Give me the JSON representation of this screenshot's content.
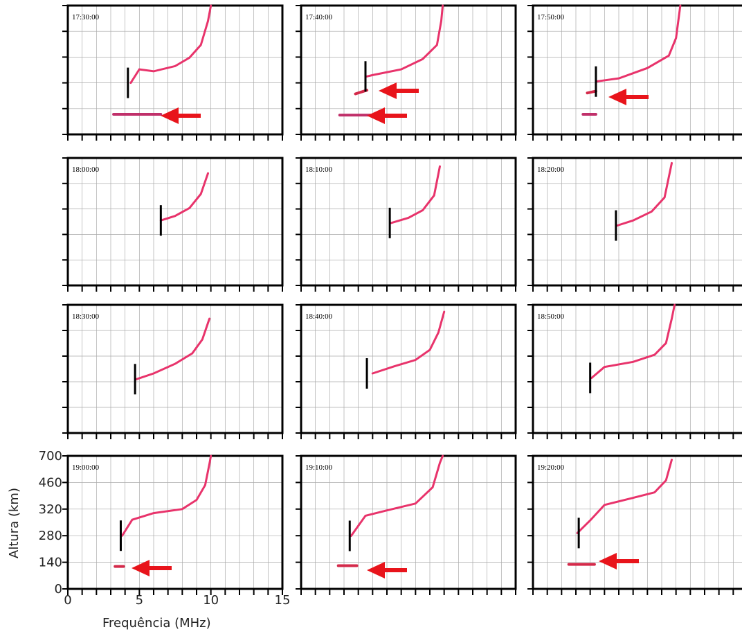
{
  "axes": {
    "xlabel": "Frequência (MHz)",
    "ylabel": "Altura (km)",
    "xlim": [
      0,
      15
    ],
    "xticks": [
      0,
      5,
      10,
      15
    ],
    "xticks_minor": [
      0,
      1,
      2,
      3,
      4,
      5,
      6,
      7,
      8,
      9,
      10,
      11,
      12,
      13,
      14,
      15
    ],
    "ylim": [
      0,
      700
    ],
    "yticks": [
      0,
      140,
      280,
      320,
      460,
      700
    ],
    "y_scale": "piecewise",
    "grid": true
  },
  "chart_data": [
    {
      "type": "line",
      "title": "17:30:00",
      "marker_x": 4.2,
      "series": [
        {
          "color": "#e8336b",
          "x": [
            4.4,
            5,
            6,
            7.5,
            8.5,
            9.3,
            9.8,
            10
          ],
          "values": [
            280,
            301,
            298,
            306,
            319,
            386,
            556,
            700
          ]
        },
        {
          "color": "#c0306a",
          "x": [
            3.2,
            6.5
          ],
          "values": [
            109,
            109
          ]
        }
      ]
    },
    {
      "type": "line",
      "title": "17:40:00",
      "marker_x": 4.5,
      "series": [
        {
          "color": "#e8336b",
          "x": [
            4.6,
            5,
            7,
            8.5,
            9.5,
            9.8,
            9.9
          ],
          "values": [
            290,
            292,
            301,
            317,
            386,
            556,
            700
          ]
        },
        {
          "color": "#d42a4a",
          "x": [
            3.8,
            4.6
          ],
          "values": [
            220,
            240
          ]
        },
        {
          "color": "#c0306a",
          "x": [
            2.7,
            5.2
          ],
          "values": [
            105,
            105
          ]
        }
      ]
    },
    {
      "type": "line",
      "title": "17:50:00",
      "marker_x": 4.4,
      "series": [
        {
          "color": "#e8336b",
          "x": [
            4.4,
            6,
            8,
            9.5,
            10,
            10.3
          ],
          "values": [
            282,
            287,
            303,
            328,
            424,
            700
          ]
        },
        {
          "color": "#d42a4a",
          "x": [
            3.8,
            4.4
          ],
          "values": [
            225,
            235
          ]
        },
        {
          "color": "#c0306a",
          "x": [
            3.5,
            4.4
          ],
          "values": [
            109,
            109
          ]
        }
      ]
    },
    {
      "type": "line",
      "title": "18:00:00",
      "marker_x": 6.5,
      "series": [
        {
          "color": "#e8336b",
          "x": [
            6.5,
            7.5,
            8.5,
            9.3,
            9.8
          ],
          "values": [
            302,
            309,
            325,
            402,
            556
          ]
        }
      ]
    },
    {
      "type": "line",
      "title": "18:10:00",
      "marker_x": 6.2,
      "series": [
        {
          "color": "#e8336b",
          "x": [
            6.3,
            7.5,
            8.5,
            9.3,
            9.7
          ],
          "values": [
            298,
            306,
            318,
            394,
            621
          ]
        }
      ]
    },
    {
      "type": "line",
      "title": "18:20:00",
      "marker_x": 5.8,
      "series": [
        {
          "color": "#e8336b",
          "x": [
            5.9,
            7,
            8.3,
            9.2,
            9.7
          ],
          "values": [
            294,
            302,
            316,
            383,
            652
          ]
        }
      ]
    },
    {
      "type": "line",
      "title": "18:30:00",
      "marker_x": 4.7,
      "series": [
        {
          "color": "#e8336b",
          "x": [
            4.8,
            6,
            7.5,
            8.7,
            9.4,
            9.9
          ],
          "values": [
            284,
            293,
            308,
            335,
            411,
            570
          ]
        }
      ]
    },
    {
      "type": "line",
      "title": "18:40:00",
      "marker_x": 4.6,
      "series": [
        {
          "color": "#e8336b",
          "x": [
            5.0,
            6.5,
            8,
            9,
            9.6,
            10
          ],
          "values": [
            293,
            304,
            314,
            354,
            449,
            635
          ]
        }
      ]
    },
    {
      "type": "line",
      "title": "18:50:00",
      "marker_x": 4.0,
      "series": [
        {
          "color": "#e8336b",
          "x": [
            4.1,
            5,
            7,
            8.5,
            9.3,
            9.7,
            9.9
          ],
          "values": [
            286,
            303,
            311,
            327,
            391,
            570,
            700
          ]
        }
      ]
    },
    {
      "type": "line",
      "title": "19:00:00",
      "marker_x": 3.7,
      "series": [
        {
          "color": "#e8336b",
          "x": [
            3.8,
            4.5,
            6,
            8,
            9,
            9.6,
            9.9,
            10
          ],
          "values": [
            280,
            304,
            314,
            320,
            368,
            446,
            628,
            700
          ]
        },
        {
          "color": "#d42a4a",
          "x": [
            3.3,
            3.9
          ],
          "values": [
            118,
            118
          ]
        }
      ]
    },
    {
      "type": "line",
      "title": "19:10:00",
      "marker_x": 3.4,
      "series": [
        {
          "color": "#e8336b",
          "x": [
            3.5,
            4.5,
            6,
            8,
            9.2,
            9.7,
            9.9
          ],
          "values": [
            279,
            310,
            318,
            349,
            435,
            637,
            700
          ]
        },
        {
          "color": "#d42a4a",
          "x": [
            2.6,
            3.9
          ],
          "values": [
            122,
            122
          ]
        }
      ]
    },
    {
      "type": "line",
      "title": "19:20:00",
      "marker_x": 3.2,
      "series": [
        {
          "color": "#e8336b",
          "x": [
            3.1,
            4,
            5,
            7,
            8.5,
            9.3,
            9.7
          ],
          "values": [
            284,
            303,
            342,
            379,
            408,
            479,
            665
          ]
        },
        {
          "color": "#d42a4a",
          "x": [
            2.5,
            4.3
          ],
          "values": [
            129,
            129
          ]
        }
      ]
    }
  ]
}
